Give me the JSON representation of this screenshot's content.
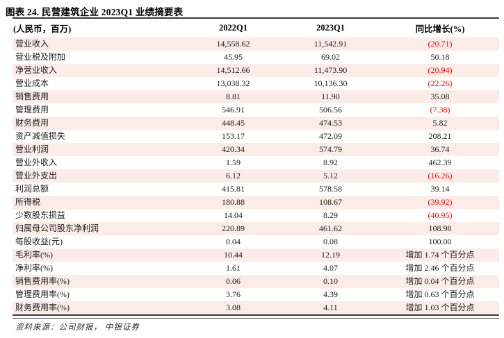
{
  "title": "图表 24. 民营建筑企业 2023Q1 业绩摘要表",
  "table": {
    "columns": [
      "(人民币，百万)",
      "2022Q1",
      "2023Q1",
      "同比增长(%)"
    ],
    "rows": [
      {
        "label": "营业收入",
        "q1_2022": "14,558.62",
        "q1_2023": "11,542.91",
        "yoy": "(20.71)"
      },
      {
        "label": "营业税及附加",
        "q1_2022": "45.95",
        "q1_2023": "69.02",
        "yoy": "50.18"
      },
      {
        "label": "净营业收入",
        "q1_2022": "14,512.66",
        "q1_2023": "11,473.90",
        "yoy": "(20.94)"
      },
      {
        "label": "营业成本",
        "q1_2022": "13,038.32",
        "q1_2023": "10,136.30",
        "yoy": "(22.26)"
      },
      {
        "label": "销售费用",
        "q1_2022": "8.81",
        "q1_2023": "11.90",
        "yoy": "35.08"
      },
      {
        "label": "管理费用",
        "q1_2022": "546.91",
        "q1_2023": "506.56",
        "yoy": "(7.38)"
      },
      {
        "label": "财务费用",
        "q1_2022": "448.45",
        "q1_2023": "474.53",
        "yoy": "5.82"
      },
      {
        "label": "资产减值损失",
        "q1_2022": "153.17",
        "q1_2023": "472.09",
        "yoy": "208.21"
      },
      {
        "label": "营业利润",
        "q1_2022": "420.34",
        "q1_2023": "574.79",
        "yoy": "36.74"
      },
      {
        "label": "营业外收入",
        "q1_2022": "1.59",
        "q1_2023": "8.92",
        "yoy": "462.39"
      },
      {
        "label": "营业外支出",
        "q1_2022": "6.12",
        "q1_2023": "5.12",
        "yoy": "(16.26)"
      },
      {
        "label": "利润总额",
        "q1_2022": "415.81",
        "q1_2023": "578.58",
        "yoy": "39.14"
      },
      {
        "label": "所得税",
        "q1_2022": "180.88",
        "q1_2023": "108.67",
        "yoy": "(39.92)"
      },
      {
        "label": "少数股东损益",
        "q1_2022": "14.04",
        "q1_2023": "8.29",
        "yoy": "(40.95)"
      },
      {
        "label": "归属母公司股东净利润",
        "q1_2022": "220.89",
        "q1_2023": "461.62",
        "yoy": "108.98"
      },
      {
        "label": "每股收益(元)",
        "q1_2022": "0.04",
        "q1_2023": "0.08",
        "yoy": "100.00"
      },
      {
        "label": "毛利率(%)",
        "q1_2022": "10.44",
        "q1_2023": "12.19",
        "yoy": "增加 1.74 个百分点"
      },
      {
        "label": "净利率(%)",
        "q1_2022": "1.61",
        "q1_2023": "4.07",
        "yoy": "增加 2.46 个百分点"
      },
      {
        "label": "销售费用率(%)",
        "q1_2022": "0.06",
        "q1_2023": "0.10",
        "yoy": "增加 0.04 个百分点"
      },
      {
        "label": "管理费用率(%)",
        "q1_2022": "3.76",
        "q1_2023": "4.39",
        "yoy": "增加 0.63 个百分点"
      },
      {
        "label": "财务费用率(%)",
        "q1_2022": "3.08",
        "q1_2023": "4.11",
        "yoy": "增加 1.03 个百分点"
      }
    ]
  },
  "footer": {
    "source": "资料来源：公司财报， 中银证券"
  },
  "colors": {
    "negative_value_red": "#ff0000",
    "row_stripe_pink": "#fbece8",
    "rule_dark": "#3b3b3b"
  }
}
